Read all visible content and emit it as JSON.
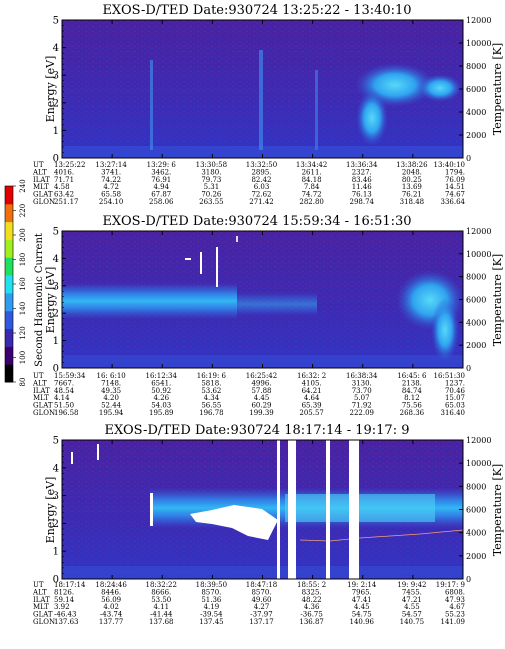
{
  "chart_data": [
    {
      "type": "heatmap",
      "title": "EXOS-D/TED   Date:930724   13:25:22 - 13:40:10",
      "ylabel": "Energy [eV]",
      "y2label": "Temperature [K]",
      "ylim": [
        0,
        5
      ],
      "y2lim": [
        0,
        12000
      ],
      "yticks": [
        "0",
        "1",
        "2",
        "3",
        "4",
        "5"
      ],
      "y2ticks": [
        "0",
        "2000",
        "4000",
        "6000",
        "8000",
        "10000",
        "12000"
      ],
      "ephemeris": {
        "labels": [
          "UT",
          "ALT",
          "ILAT",
          "MLT",
          "GLAT",
          "GLON"
        ],
        "columns": [
          [
            "13:25:22",
            "4016.",
            "71.71",
            "4.58",
            "63.42",
            "251.17"
          ],
          [
            "13:27:14",
            "3741.",
            "74.22",
            "4.72",
            "65.58",
            "254.10"
          ],
          [
            "13:29: 6",
            "3462.",
            "76.91",
            "4.94",
            "67.87",
            "258.06"
          ],
          [
            "13:30:58",
            "3180.",
            "79.73",
            "5.31",
            "70.26",
            "263.55"
          ],
          [
            "13:32:50",
            "2895.",
            "82.42",
            "6.03",
            "72.62",
            "271.42"
          ],
          [
            "13:34:42",
            "2611.",
            "84.18",
            "7.84",
            "74.72",
            "282.80"
          ],
          [
            "13:36:34",
            "2327.",
            "83.46",
            "11.46",
            "76.13",
            "298.74"
          ],
          [
            "13:38:26",
            "2048.",
            "80.25",
            "13.69",
            "76.21",
            "318.48"
          ],
          [
            "13:40:10",
            "1794.",
            "76.09",
            "14.51",
            "74.67",
            "336.64"
          ]
        ]
      }
    },
    {
      "type": "heatmap",
      "title": "EXOS-D/TED   Date:930724   15:59:34 - 16:51:30",
      "ylabel": "Energy [eV]",
      "y2label": "Temperature [K]",
      "ylim": [
        0,
        5
      ],
      "y2lim": [
        0,
        12000
      ],
      "yticks": [
        "0",
        "1",
        "2",
        "3",
        "4",
        "5"
      ],
      "y2ticks": [
        "0",
        "2000",
        "4000",
        "6000",
        "8000",
        "10000",
        "12000"
      ],
      "ephemeris": {
        "labels": [
          "UT",
          "ALT",
          "ILAT",
          "MLT",
          "GLAT",
          "GLON"
        ],
        "columns": [
          [
            "15:59:34",
            "7667.",
            "48.54",
            "4.14",
            "51.50",
            "196.58"
          ],
          [
            "16: 6:10",
            "7148.",
            "49.35",
            "4.20",
            "52.44",
            "195.94"
          ],
          [
            "16:12:34",
            "6541.",
            "50.92",
            "4.26",
            "54.03",
            "195.89"
          ],
          [
            "16:19: 6",
            "5818.",
            "53.62",
            "4.34",
            "56.55",
            "196.78"
          ],
          [
            "16:25:42",
            "4996.",
            "57.88",
            "4.45",
            "60.29",
            "199.39"
          ],
          [
            "16:32: 2",
            "4105.",
            "64.21",
            "4.64",
            "65.39",
            "205.57"
          ],
          [
            "16:38:34",
            "3130.",
            "73.70",
            "5.07",
            "71.92",
            "222.09"
          ],
          [
            "16:45: 6",
            "2138.",
            "84.74",
            "8.12",
            "75.56",
            "268.36"
          ],
          [
            "16:51:30",
            "1237.",
            "70.46",
            "15.07",
            "65.03",
            "316.40"
          ]
        ]
      }
    },
    {
      "type": "heatmap",
      "title": "EXOS-D/TED   Date:930724   18:17:14 - 19:17: 9",
      "ylabel": "Energy [eV]",
      "y2label": "Temperature [K]",
      "ylim": [
        0,
        5
      ],
      "y2lim": [
        0,
        12000
      ],
      "yticks": [
        "0",
        "1",
        "2",
        "3",
        "4",
        "5"
      ],
      "y2ticks": [
        "0",
        "2000",
        "4000",
        "6000",
        "8000",
        "10000",
        "12000"
      ],
      "ephemeris": {
        "labels": [
          "UT",
          "ALT",
          "ILAT",
          "MLT",
          "GLAT",
          "GLON"
        ],
        "columns": [
          [
            "18:17:14",
            "8126.",
            "59.14",
            "3.92",
            "-46.43",
            "137.63"
          ],
          [
            "18:24:46",
            "8446.",
            "56.09",
            "4.02",
            "-43.74",
            "137.77"
          ],
          [
            "18:32:22",
            "8666.",
            "53.50",
            "4.11",
            "-41.44",
            "137.68"
          ],
          [
            "18:39:50",
            "8570.",
            "51.36",
            "4.19",
            "-39.54",
            "137.45"
          ],
          [
            "18:47:18",
            "8570.",
            "49.60",
            "4.27",
            "-37.97",
            "137.17"
          ],
          [
            "18:55: 2",
            "8325.",
            "48.22",
            "4.36",
            "-36.75",
            "136.87"
          ],
          [
            "19: 2:14",
            "7965.",
            "47.41",
            "4.45",
            "54.75",
            "140.96"
          ],
          [
            "19: 9:42",
            "7455.",
            "47.21",
            "4.55",
            "54.57",
            "140.75"
          ],
          [
            "19:17: 9",
            "6808.",
            "47.93",
            "4.67",
            "55.23",
            "141.09"
          ]
        ]
      }
    }
  ],
  "colorbar": {
    "label": "Second Harmonic Current",
    "ticks": [
      "80",
      "100",
      "120",
      "140",
      "160",
      "180",
      "200",
      "220",
      "240"
    ],
    "colors": [
      "#000000",
      "#3c0070",
      "#3a2ab0",
      "#3258e0",
      "#2f9cf0",
      "#22e0f0",
      "#20e060",
      "#a0f020",
      "#f0e020",
      "#f07010",
      "#e00000"
    ]
  }
}
